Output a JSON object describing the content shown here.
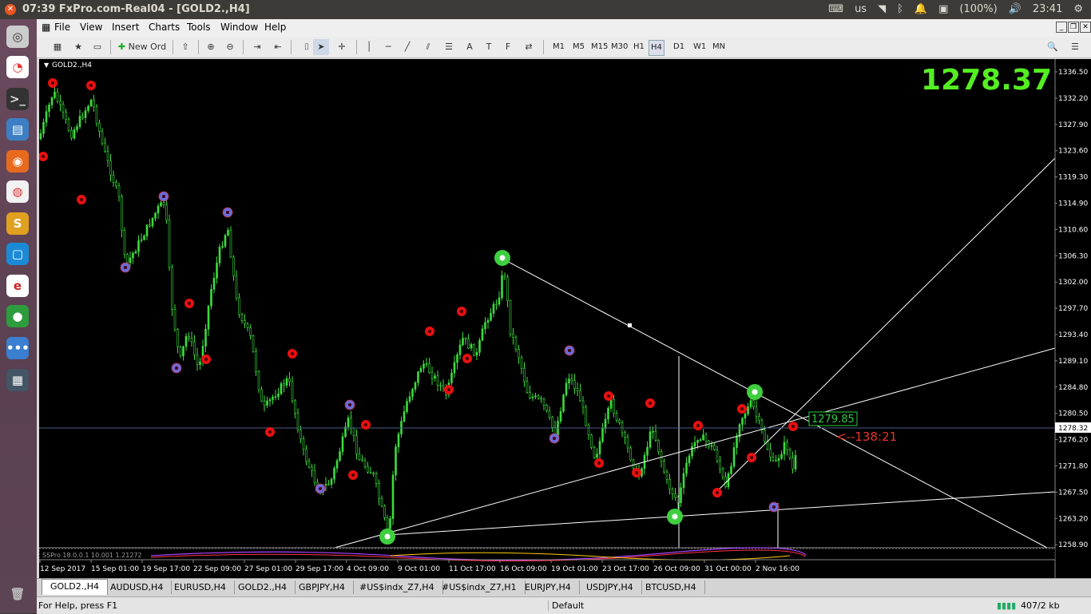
{
  "window": {
    "title": "07:39 FxPro.com-Real04 - [GOLD2.,H4]"
  },
  "tray": {
    "language": "us",
    "battery": "(100%)",
    "clock": "23:41"
  },
  "menu": [
    "File",
    "View",
    "Insert",
    "Charts",
    "Tools",
    "Window",
    "Help"
  ],
  "toolbar": {
    "new_order_label": "New Ord",
    "timeframes": [
      "M1",
      "M5",
      "M15",
      "M30",
      "H1",
      "H4",
      "D1",
      "W1",
      "MN"
    ],
    "active_timeframe": "H4"
  },
  "chart": {
    "symbol_label": "GOLD2.,H4",
    "big_price": "1278.37",
    "bid_label": "1278.32",
    "target_label": "1279.85",
    "countdown_label": "<--138:21",
    "indicator_label": "SSPro 18.0.0.1 10.001 1.21272",
    "price_axis": [
      "1336.50",
      "1332.20",
      "1327.90",
      "1323.60",
      "1319.30",
      "1314.90",
      "1310.60",
      "1306.30",
      "1302.00",
      "1297.70",
      "1293.40",
      "1289.10",
      "1284.80",
      "1280.50",
      "1276.20",
      "1271.80",
      "1267.50",
      "1263.20",
      "1258.90"
    ],
    "time_axis": [
      "12 Sep 2017",
      "15 Sep 01:00",
      "19 Sep 17:00",
      "22 Sep 09:00",
      "27 Sep 01:00",
      "29 Sep 17:00",
      "4 Oct 09:00",
      "9 Oct 01:00",
      "11 Oct 17:00",
      "16 Oct 09:00",
      "19 Oct 01:00",
      "23 Oct 17:00",
      "26 Oct 09:00",
      "31 Oct 00:00",
      "2 Nov 16:00"
    ],
    "colors": {
      "background": "#000000",
      "candles": "#3ddc3d",
      "big_price": "#55ee22",
      "countdown": "#e8332b",
      "marker_red": "#e81010",
      "marker_blue": "#6a6adb",
      "marker_green": "#3ecf3e"
    }
  },
  "tabs": [
    "GOLD2.,H4",
    "AUDUSD,H4",
    "EURUSD,H4",
    "GOLD2.,H4",
    "GBPJPY,H4",
    "#US$indx_Z7,H4",
    "#US$indx_Z7,H1",
    "EURJPY,H4",
    "USDJPY,H4",
    "BTCUSD,H4"
  ],
  "active_tab": 0,
  "status": {
    "help_text": "For Help, press F1",
    "profile": "Default",
    "traffic": "407/2 kb"
  }
}
